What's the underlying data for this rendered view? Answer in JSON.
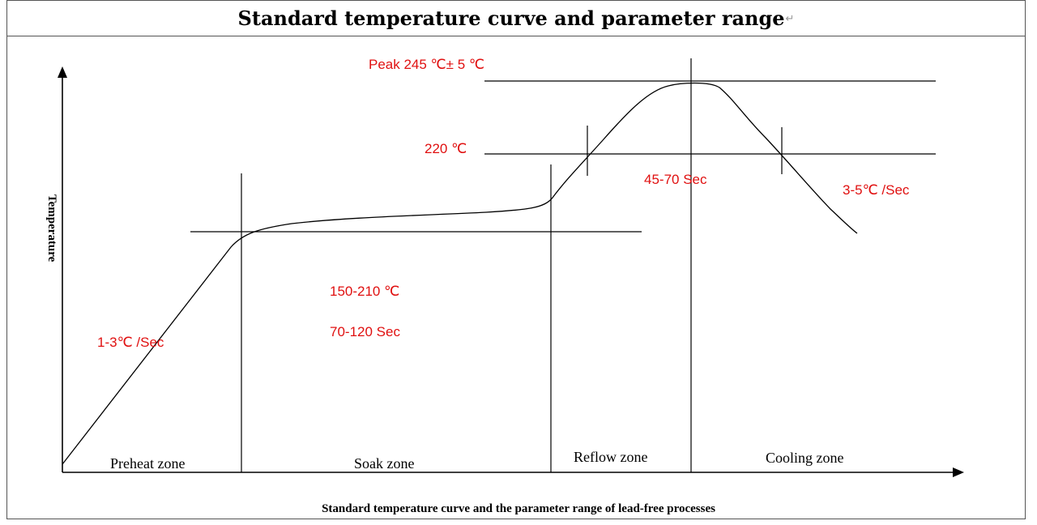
{
  "title": "Standard temperature curve and parameter range",
  "y_label": "Temperature",
  "caption": "Standard temperature curve and the parameter range of lead-free processes",
  "zones": {
    "preheat": "Preheat zone",
    "soak": "Soak zone",
    "reflow": "Reflow zone",
    "cooling": "Cooling zone"
  },
  "annotations": {
    "peak": "Peak 245 ℃± 5 ℃",
    "liquidus": "220 ℃",
    "reflow_time": "45-70 Sec",
    "cooling_rate": "3-5℃ /Sec",
    "soak_temp": "150-210 ℃",
    "soak_time": "70-120 Sec",
    "preheat_rate": "1-3℃ /Sec"
  },
  "colors": {
    "annotation": "#e01010",
    "line": "#000000"
  }
}
